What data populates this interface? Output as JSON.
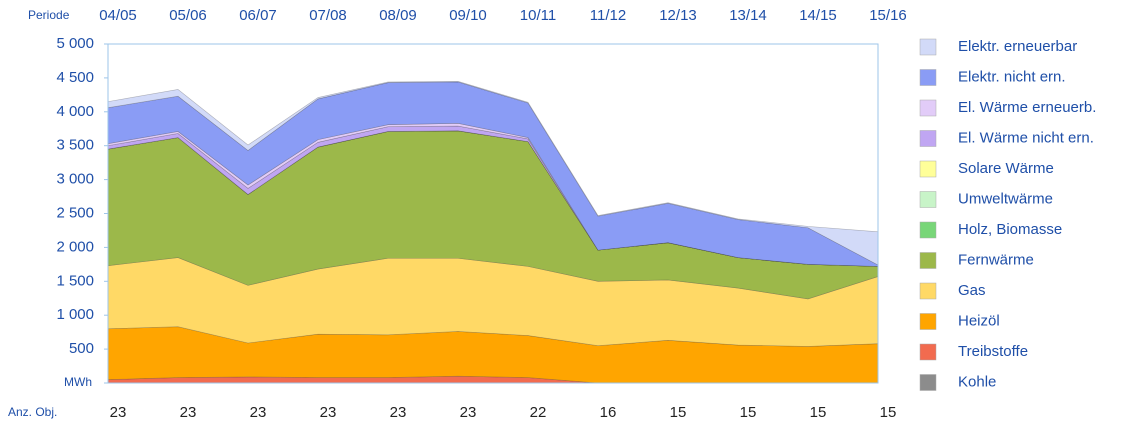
{
  "chart_data": {
    "type": "stacked_area",
    "x_label": "Periode",
    "y_unit": "MWh",
    "count_label": "Anz. Obj.",
    "categories": [
      "04/05",
      "05/06",
      "06/07",
      "07/08",
      "08/09",
      "09/10",
      "10/11",
      "11/12",
      "12/13",
      "13/14",
      "14/15",
      "15/16"
    ],
    "counts": [
      23,
      23,
      23,
      23,
      23,
      23,
      22,
      16,
      15,
      15,
      15,
      15
    ],
    "ylim": [
      0,
      5000
    ],
    "yticks": [
      0,
      500,
      {
        "value": 1000,
        "label": "1 000"
      },
      {
        "value": 1500,
        "label": "1 500"
      },
      {
        "value": 2000,
        "label": "2 000"
      },
      {
        "value": 2500,
        "label": "2 500"
      },
      {
        "value": 3000,
        "label": "3 000"
      },
      {
        "value": 3500,
        "label": "3 500"
      },
      {
        "value": 4000,
        "label": "4 000"
      },
      {
        "value": 4500,
        "label": "4 500"
      },
      {
        "value": 5000,
        "label": "5 000"
      }
    ],
    "series": [
      {
        "name": "Kohle",
        "color": "#8c8c8c",
        "values": [
          0,
          0,
          0,
          0,
          0,
          0,
          0,
          0,
          0,
          0,
          0,
          0
        ]
      },
      {
        "name": "Treibstoffe",
        "color": "#f26b4f",
        "values": [
          50,
          80,
          90,
          80,
          80,
          100,
          80,
          0,
          0,
          0,
          0,
          0
        ]
      },
      {
        "name": "Heizöl",
        "color": "#ffa500",
        "values": [
          750,
          750,
          500,
          640,
          630,
          660,
          620,
          550,
          630,
          560,
          540,
          580
        ]
      },
      {
        "name": "Gas",
        "color": "#ffd966",
        "values": [
          930,
          1020,
          850,
          960,
          1130,
          1080,
          1020,
          950,
          890,
          840,
          700,
          990
        ]
      },
      {
        "name": "Fernwärme",
        "color": "#9cb84a",
        "values": [
          1720,
          1770,
          1340,
          1800,
          1870,
          1880,
          1840,
          460,
          550,
          450,
          510,
          150
        ]
      },
      {
        "name": "Holz, Biomasse",
        "color": "#78d678",
        "values": [
          0,
          0,
          0,
          0,
          0,
          0,
          0,
          0,
          0,
          0,
          0,
          0
        ]
      },
      {
        "name": "Umweltwärme",
        "color": "#c8f4c8",
        "values": [
          0,
          0,
          0,
          0,
          0,
          0,
          0,
          0,
          0,
          0,
          0,
          0
        ]
      },
      {
        "name": "Solare Wärme",
        "color": "#ffff99",
        "values": [
          0,
          0,
          0,
          0,
          0,
          0,
          0,
          0,
          0,
          0,
          0,
          0
        ]
      },
      {
        "name": "El. Wärme nicht ern.",
        "color": "#c0a6f2",
        "values": [
          50,
          60,
          90,
          70,
          70,
          70,
          40,
          0,
          0,
          0,
          0,
          0
        ]
      },
      {
        "name": "El. Wärme erneuerb.",
        "color": "#e2ccf8",
        "values": [
          30,
          30,
          50,
          40,
          30,
          40,
          20,
          0,
          0,
          0,
          0,
          0
        ]
      },
      {
        "name": "Elektr. nicht ern.",
        "color": "#8a9cf5",
        "values": [
          530,
          520,
          510,
          600,
          620,
          610,
          510,
          500,
          580,
          560,
          540,
          20
        ]
      },
      {
        "name": "Elektr. erneuerbar",
        "color": "#d2daf8",
        "values": [
          90,
          100,
          80,
          20,
          10,
          10,
          10,
          10,
          10,
          10,
          20,
          490
        ]
      }
    ]
  }
}
